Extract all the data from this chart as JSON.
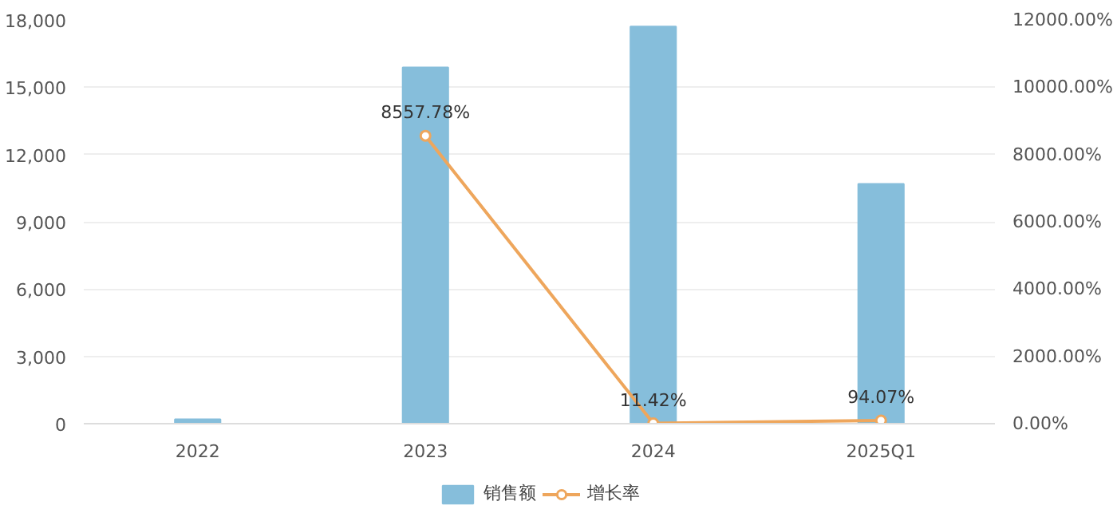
{
  "chart_data": {
    "type": "bar",
    "categories": [
      "2022",
      "2023",
      "2024",
      "2025Q1"
    ],
    "series": [
      {
        "name": "销售额",
        "color": "#86bedb",
        "values": [
          200,
          15880,
          17710,
          10690
        ]
      },
      {
        "name": "增长率",
        "color": "#eea65c",
        "type": "line",
        "axis": "y2",
        "marker": "circle",
        "values": [
          null,
          8557.78,
          11.42,
          94.07
        ],
        "value_labels": [
          null,
          "8557.78%",
          "11.42%",
          "94.07%"
        ]
      }
    ],
    "ylim": [
      0,
      18000
    ],
    "yticks": [
      0,
      {
        "value": 3000,
        "label": "3,000"
      },
      {
        "value": 6000,
        "label": "6,000"
      },
      {
        "value": 9000,
        "label": "9,000"
      },
      {
        "value": 12000,
        "label": "12,000"
      },
      {
        "value": 15000,
        "label": "15,000"
      },
      {
        "value": 18000,
        "label": "18,000"
      }
    ],
    "y2lim": [
      0,
      12000
    ],
    "y2ticks": [
      {
        "value": 0,
        "label": "0.00%"
      },
      {
        "value": 2000,
        "label": "2000.00%"
      },
      {
        "value": 4000,
        "label": "4000.00%"
      },
      {
        "value": 6000,
        "label": "6000.00%"
      },
      {
        "value": 8000,
        "label": "8000.00%"
      },
      {
        "value": 10000,
        "label": "10000.00%"
      },
      {
        "value": 12000,
        "label": "12000.00%"
      }
    ],
    "grid": "y",
    "legend": "bottom"
  }
}
